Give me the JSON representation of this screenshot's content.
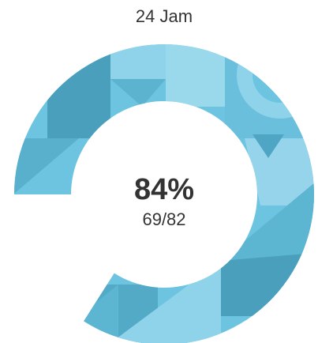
{
  "chart_data": {
    "type": "gauge",
    "title": "24 Jam",
    "values": [
      84
    ],
    "value_labels": [
      "84%"
    ],
    "subtitle": "69/82",
    "ylim": [
      0,
      100
    ],
    "color": "#6cc4e0"
  }
}
